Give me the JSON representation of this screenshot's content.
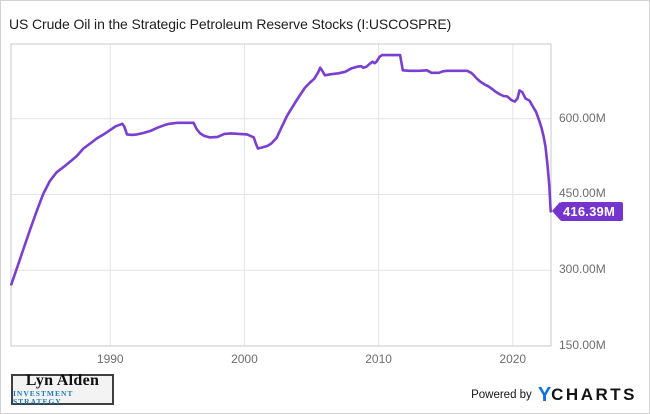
{
  "colors": {
    "line": "#7a3fd0",
    "badge_bg": "#7634cf",
    "grid": "#e4e4e4",
    "plot_border": "#c9c9c9",
    "tick_text": "#6e6e6e",
    "title_text": "#1e1e1e",
    "ycharts_blue": "#0c6ef0",
    "lyn_alden_blue": "#1b7ab8"
  },
  "chart_data": {
    "type": "line",
    "title": "US Crude Oil in the Strategic Petroleum Reserve Stocks (I:USCOSPRE)",
    "series_name": "US Crude Oil in the Strategic Petroleum Reserve Stocks",
    "unit": "barrels (millions)",
    "grid": true,
    "legend": false,
    "x_range": [
      1982.6,
      2022.85
    ],
    "y_range": [
      150,
      748
    ],
    "x_ticks": [
      {
        "value": 1990,
        "label": "1990"
      },
      {
        "value": 2000,
        "label": "2000"
      },
      {
        "value": 2010,
        "label": "2010"
      },
      {
        "value": 2020,
        "label": "2020"
      }
    ],
    "y_ticks": [
      {
        "value": 600,
        "label": "600.00M"
      },
      {
        "value": 450,
        "label": "450.00M"
      },
      {
        "value": 300,
        "label": "300.00M"
      },
      {
        "value": 150,
        "label": "150.00M"
      }
    ],
    "last_point": {
      "x": 2022.83,
      "y": 416.39,
      "label": "416.39M"
    },
    "points": [
      [
        1982.62,
        272
      ],
      [
        1983,
        301
      ],
      [
        1983.5,
        340
      ],
      [
        1984,
        379
      ],
      [
        1984.5,
        416
      ],
      [
        1985,
        451
      ],
      [
        1985.5,
        477
      ],
      [
        1986,
        494
      ],
      [
        1986.5,
        504
      ],
      [
        1987,
        515
      ],
      [
        1987.5,
        526
      ],
      [
        1988,
        541
      ],
      [
        1988.5,
        551
      ],
      [
        1989,
        561
      ],
      [
        1989.5,
        569
      ],
      [
        1990,
        578
      ],
      [
        1990.4,
        585
      ],
      [
        1990.9,
        590
      ],
      [
        1991.05,
        584
      ],
      [
        1991.25,
        569
      ],
      [
        1991.6,
        568
      ],
      [
        1992,
        569
      ],
      [
        1992.5,
        572
      ],
      [
        1993,
        576
      ],
      [
        1993.5,
        582
      ],
      [
        1994,
        587
      ],
      [
        1994.4,
        590
      ],
      [
        1995,
        592
      ],
      [
        1996.2,
        592
      ],
      [
        1996.45,
        579
      ],
      [
        1996.7,
        571
      ],
      [
        1997,
        566
      ],
      [
        1997.4,
        563
      ],
      [
        1998,
        564
      ],
      [
        1998.5,
        570
      ],
      [
        1999,
        571
      ],
      [
        1999.6,
        570
      ],
      [
        2000.2,
        569
      ],
      [
        2000.7,
        563
      ],
      [
        2000.85,
        551
      ],
      [
        2001,
        541
      ],
      [
        2001.3,
        543
      ],
      [
        2001.7,
        546
      ],
      [
        2002,
        551
      ],
      [
        2002.4,
        562
      ],
      [
        2002.8,
        585
      ],
      [
        2003.2,
        607
      ],
      [
        2003.6,
        624
      ],
      [
        2004,
        641
      ],
      [
        2004.5,
        661
      ],
      [
        2004.9,
        672
      ],
      [
        2005.2,
        679
      ],
      [
        2005.5,
        692
      ],
      [
        2005.65,
        701
      ],
      [
        2005.8,
        695
      ],
      [
        2006,
        686
      ],
      [
        2006.4,
        688
      ],
      [
        2007,
        690
      ],
      [
        2007.5,
        693
      ],
      [
        2008,
        700
      ],
      [
        2008.4,
        703
      ],
      [
        2008.7,
        704
      ],
      [
        2008.85,
        701
      ],
      [
        2009.1,
        703
      ],
      [
        2009.35,
        709
      ],
      [
        2009.55,
        713
      ],
      [
        2009.7,
        710
      ],
      [
        2009.85,
        713
      ],
      [
        2010.05,
        722
      ],
      [
        2010.25,
        726
      ],
      [
        2011.6,
        726
      ],
      [
        2011.8,
        696
      ],
      [
        2012.3,
        695
      ],
      [
        2013,
        695
      ],
      [
        2013.6,
        696
      ],
      [
        2013.95,
        691
      ],
      [
        2014.5,
        691
      ],
      [
        2014.8,
        694
      ],
      [
        2015.1,
        695
      ],
      [
        2016.6,
        695
      ],
      [
        2016.9,
        691
      ],
      [
        2017.1,
        686
      ],
      [
        2017.3,
        680
      ],
      [
        2017.6,
        673
      ],
      [
        2017.9,
        668
      ],
      [
        2018.2,
        664
      ],
      [
        2018.45,
        659
      ],
      [
        2018.7,
        654
      ],
      [
        2019,
        649
      ],
      [
        2019.3,
        645
      ],
      [
        2019.6,
        644
      ],
      [
        2019.9,
        637
      ],
      [
        2020.15,
        634
      ],
      [
        2020.35,
        640
      ],
      [
        2020.5,
        656
      ],
      [
        2020.7,
        653
      ],
      [
        2020.95,
        640
      ],
      [
        2021.25,
        636
      ],
      [
        2021.5,
        624
      ],
      [
        2021.75,
        613
      ],
      [
        2022,
        594
      ],
      [
        2022.15,
        581
      ],
      [
        2022.3,
        565
      ],
      [
        2022.45,
        543
      ],
      [
        2022.6,
        506
      ],
      [
        2022.72,
        468
      ],
      [
        2022.83,
        416.39
      ]
    ]
  },
  "footer": {
    "logo": {
      "line1": "Lyn Alden",
      "line2": "INVESTMENT STRATEGY"
    },
    "powered_by": "Powered by",
    "ycharts": {
      "y": "Y",
      "charts": "CHARTS"
    }
  }
}
